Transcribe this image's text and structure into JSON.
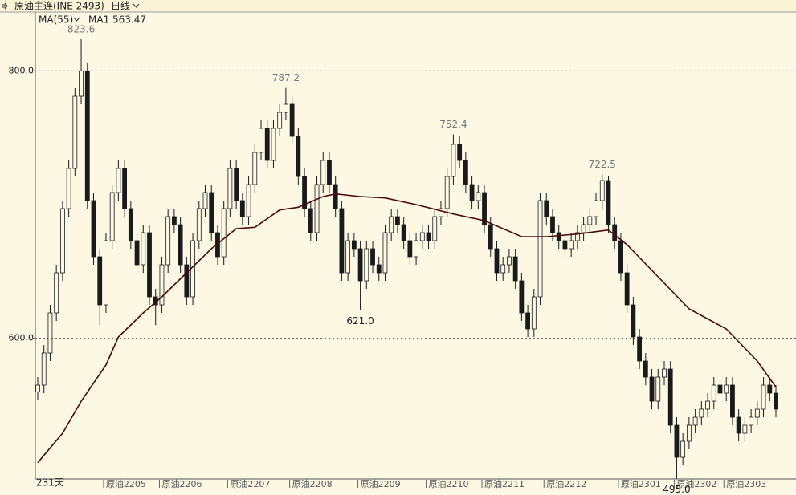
{
  "header": {
    "symbol": "原油主连(INE 2493)",
    "period": "日线",
    "indicator": "MA(55)"
  },
  "chart_data": {
    "type": "candlestick",
    "days_label": "231天",
    "open": [
      560,
      565,
      589,
      619,
      649,
      697,
      727,
      781,
      800,
      703,
      661,
      625,
      673,
      709,
      727,
      697,
      673,
      655,
      679,
      631,
      625,
      655,
      691,
      685,
      655,
      631,
      673,
      697,
      709,
      679,
      661,
      697,
      727,
      703,
      691,
      715,
      739,
      757,
      733,
      757,
      769,
      775,
      751,
      721,
      697,
      679,
      715,
      733,
      715,
      697,
      649,
      673,
      667,
      643,
      667,
      655,
      649,
      679,
      691,
      685,
      673,
      661,
      673,
      679,
      673,
      691,
      697,
      721,
      745,
      733,
      715,
      703,
      709,
      685,
      667,
      649,
      655,
      661,
      643,
      619,
      607,
      631,
      703,
      691,
      679,
      673,
      667,
      673,
      679,
      685,
      691,
      703,
      718,
      685,
      673,
      649,
      625,
      601,
      583,
      571,
      553,
      571,
      577,
      535,
      511,
      523,
      535,
      541,
      547,
      553,
      565,
      559,
      565,
      541,
      529,
      535,
      541,
      547,
      565,
      559
    ],
    "high": [
      571,
      595,
      625,
      655,
      703,
      733,
      787,
      823.6,
      806,
      709,
      667,
      679,
      715,
      733,
      733,
      703,
      679,
      685,
      685,
      637,
      661,
      697,
      697,
      691,
      661,
      679,
      703,
      715,
      715,
      685,
      703,
      733,
      733,
      709,
      721,
      745,
      763,
      763,
      763,
      775,
      787.2,
      781,
      757,
      727,
      703,
      721,
      739,
      739,
      721,
      703,
      679,
      679,
      673,
      673,
      673,
      661,
      685,
      697,
      697,
      691,
      679,
      679,
      685,
      685,
      697,
      703,
      727,
      752.4,
      751,
      739,
      721,
      715,
      715,
      691,
      673,
      661,
      667,
      667,
      649,
      625,
      637,
      709,
      709,
      697,
      685,
      679,
      679,
      685,
      691,
      697,
      709,
      722.5,
      721,
      691,
      679,
      655,
      631,
      607,
      589,
      577,
      577,
      583,
      583,
      541,
      529,
      541,
      547,
      553,
      559,
      571,
      571,
      571,
      571,
      547,
      541,
      547,
      553,
      571,
      571,
      565
    ],
    "low": [
      554,
      559,
      583,
      613,
      643,
      691,
      721,
      775,
      697,
      655,
      610,
      619,
      667,
      703,
      691,
      667,
      649,
      649,
      625,
      610,
      619,
      649,
      679,
      649,
      625,
      625,
      667,
      691,
      673,
      655,
      655,
      691,
      697,
      685,
      685,
      709,
      733,
      727,
      727,
      751,
      763,
      745,
      715,
      691,
      673,
      673,
      709,
      709,
      691,
      643,
      643,
      661,
      621,
      637,
      649,
      643,
      643,
      673,
      679,
      667,
      655,
      655,
      667,
      667,
      667,
      685,
      691,
      715,
      727,
      709,
      697,
      697,
      679,
      661,
      643,
      643,
      649,
      637,
      613,
      601,
      601,
      625,
      685,
      673,
      667,
      661,
      661,
      667,
      673,
      679,
      685,
      697,
      679,
      667,
      643,
      619,
      595,
      577,
      565,
      547,
      547,
      565,
      529,
      495,
      505,
      517,
      529,
      535,
      541,
      547,
      553,
      553,
      535,
      523,
      523,
      529,
      535,
      541,
      553,
      541
    ],
    "close": [
      565,
      589,
      619,
      649,
      697,
      727,
      781,
      800,
      703,
      661,
      625,
      673,
      709,
      727,
      697,
      673,
      655,
      679,
      631,
      625,
      655,
      691,
      685,
      655,
      631,
      673,
      697,
      709,
      679,
      661,
      697,
      727,
      703,
      691,
      715,
      739,
      757,
      733,
      757,
      769,
      775,
      751,
      721,
      697,
      679,
      715,
      733,
      715,
      697,
      649,
      673,
      667,
      643,
      667,
      655,
      649,
      679,
      691,
      685,
      673,
      661,
      673,
      679,
      673,
      691,
      697,
      721,
      745,
      733,
      715,
      703,
      709,
      685,
      667,
      649,
      655,
      661,
      643,
      619,
      607,
      631,
      703,
      691,
      679,
      673,
      667,
      673,
      679,
      685,
      691,
      703,
      718,
      685,
      673,
      649,
      625,
      601,
      583,
      571,
      553,
      571,
      577,
      535,
      511,
      523,
      535,
      541,
      547,
      553,
      565,
      559,
      565,
      541,
      529,
      535,
      541,
      547,
      565,
      559,
      547
    ],
    "up_color": "#fdf8e4",
    "down_color": "#1a1a1a",
    "outline_color": "#1a1a1a",
    "ma": {
      "name": "MA1",
      "color": "#4a0a0a",
      "x": [
        0,
        4,
        7,
        11,
        13,
        17,
        20,
        24,
        28,
        32,
        35,
        39,
        42,
        46,
        48,
        52,
        56,
        61,
        67,
        72,
        78,
        82,
        87,
        92,
        95,
        100,
        105,
        111,
        116,
        119
      ],
      "values": [
        507,
        529,
        553,
        580,
        601,
        619,
        631,
        649,
        667,
        682,
        683,
        696,
        698,
        706,
        708,
        706,
        705,
        700,
        693,
        688,
        676,
        676,
        678,
        681,
        670,
        646,
        622,
        607,
        583,
        563.47
      ]
    },
    "annotations": [
      {
        "label": "823.6",
        "candle": 7
      },
      {
        "label": "787.2",
        "candle": 40
      },
      {
        "label": "752.4",
        "candle": 67
      },
      {
        "label": "722.5",
        "candle": 91
      },
      {
        "label": "621.0",
        "candle": 52
      },
      {
        "label": "495.0",
        "candle": 103
      }
    ],
    "ylim": [
      496,
      844
    ],
    "yticks": [
      {
        "value": 600,
        "label": "600.0"
      },
      {
        "value": 800,
        "label": "800.0"
      }
    ],
    "xticks": [
      {
        "value": 11,
        "label": "原油2205"
      },
      {
        "value": 20,
        "label": "原油2206"
      },
      {
        "value": 31,
        "label": "原油2207"
      },
      {
        "value": 41,
        "label": "原油2208"
      },
      {
        "value": 52,
        "label": "原油2209"
      },
      {
        "value": 63,
        "label": "原油2210"
      },
      {
        "value": 72,
        "label": "原油2211"
      },
      {
        "value": 82,
        "label": "原油2212"
      },
      {
        "value": 94,
        "label": "原油2301"
      },
      {
        "value": 103,
        "label": "原油2302"
      },
      {
        "value": 111,
        "label": "原油2303"
      }
    ],
    "grid": true
  }
}
